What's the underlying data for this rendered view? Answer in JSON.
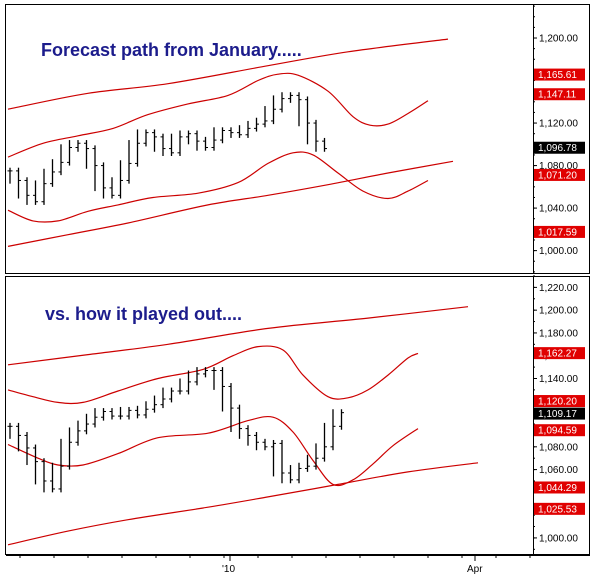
{
  "chart_data": [
    {
      "type": "line",
      "title": "Forecast path from January.....",
      "ylim": [
        978,
        1232
      ],
      "yticks": [
        1000,
        1040,
        1080,
        1120,
        1200
      ],
      "ytick_labels": [
        "1,000.00",
        "1,040.00",
        "1,080.00",
        "1,120.00",
        "1,200.00"
      ],
      "price_tags": [
        {
          "value": 1165.61,
          "label": "1,165.61",
          "color": "#e00000"
        },
        {
          "value": 1147.11,
          "label": "1,147.11",
          "color": "#e00000"
        },
        {
          "value": 1096.78,
          "label": "1,096.78",
          "color": "#000000"
        },
        {
          "value": 1071.2,
          "label": "1,071.20",
          "color": "#e00000"
        },
        {
          "value": 1017.59,
          "label": "1,017.59",
          "color": "#e00000"
        }
      ],
      "series": [
        {
          "color": "#cc0000",
          "points": [
            [
              0,
              1004
            ],
            [
              60,
              1015
            ],
            [
              120,
              1026
            ],
            [
              200,
              1043
            ],
            [
              260,
              1052
            ],
            [
              320,
              1062
            ],
            [
              380,
              1073
            ],
            [
              445,
              1084
            ]
          ]
        },
        {
          "color": "#cc0000",
          "points": [
            [
              0,
              1133
            ],
            [
              80,
              1148
            ],
            [
              160,
              1157
            ],
            [
              260,
              1174
            ],
            [
              340,
              1187
            ],
            [
              440,
              1199
            ]
          ]
        },
        {
          "color": "#cc0000",
          "points": [
            [
              0,
              1088
            ],
            [
              35,
              1101
            ],
            [
              70,
              1108
            ],
            [
              105,
              1115
            ],
            [
              140,
              1128
            ],
            [
              180,
              1138
            ],
            [
              220,
              1146
            ],
            [
              250,
              1160
            ],
            [
              270,
              1166
            ],
            [
              290,
              1165
            ],
            [
              320,
              1150
            ],
            [
              345,
              1126
            ],
            [
              362,
              1118
            ],
            [
              380,
              1119
            ],
            [
              400,
              1129
            ],
            [
              420,
              1141
            ]
          ]
        },
        {
          "color": "#cc0000",
          "points": [
            [
              0,
              1038
            ],
            [
              25,
              1028
            ],
            [
              50,
              1028
            ],
            [
              80,
              1037
            ],
            [
              110,
              1043
            ],
            [
              145,
              1050
            ],
            [
              190,
              1054
            ],
            [
              230,
              1064
            ],
            [
              260,
              1082
            ],
            [
              285,
              1092
            ],
            [
              305,
              1090
            ],
            [
              330,
              1073
            ],
            [
              355,
              1056
            ],
            [
              380,
              1049
            ],
            [
              400,
              1056
            ],
            [
              420,
              1066
            ]
          ]
        }
      ],
      "ohlc_path": [
        1075,
        1066,
        1052,
        1046,
        1063,
        1074,
        1083,
        1097,
        1101,
        1096,
        1080,
        1059,
        1052,
        1066,
        1082,
        1101,
        1111,
        1107,
        1096,
        1092,
        1107,
        1110,
        1103,
        1097,
        1104,
        1113,
        1111,
        1109,
        1115,
        1119,
        1122,
        1133,
        1143,
        1146,
        1142,
        1120,
        1103,
        1096
      ]
    },
    {
      "type": "line",
      "title": "vs. how it played out....",
      "ylim": [
        985,
        1230
      ],
      "yticks": [
        1000,
        1060,
        1080,
        1140,
        1160,
        1180,
        1200,
        1220
      ],
      "ytick_labels": [
        "1,000.00",
        "1,060.00",
        "1,080.00",
        "1,140.00",
        "1,160.00",
        "1,180.00",
        "1,200.00",
        "1,220.00"
      ],
      "xticks": [
        {
          "x": 230,
          "label": "'10"
        },
        {
          "x": 475,
          "label": "Apr"
        }
      ],
      "price_tags": [
        {
          "value": 1162.27,
          "label": "1,162.27",
          "color": "#e00000"
        },
        {
          "value": 1120.2,
          "label": "1,120.20",
          "color": "#e00000"
        },
        {
          "value": 1109.17,
          "label": "1,109.17",
          "color": "#000000"
        },
        {
          "value": 1094.59,
          "label": "1,094.59",
          "color": "#e00000"
        },
        {
          "value": 1044.29,
          "label": "1,044.29",
          "color": "#e00000"
        },
        {
          "value": 1025.53,
          "label": "1,025.53",
          "color": "#e00000"
        }
      ],
      "series": [
        {
          "color": "#cc0000",
          "points": [
            [
              0,
              994
            ],
            [
              60,
              1006
            ],
            [
              120,
              1016
            ],
            [
              200,
              1027
            ],
            [
              260,
              1036
            ],
            [
              330,
              1047
            ],
            [
              400,
              1058
            ],
            [
              470,
              1066
            ]
          ]
        },
        {
          "color": "#cc0000",
          "points": [
            [
              0,
              1152
            ],
            [
              80,
              1161
            ],
            [
              160,
              1170
            ],
            [
              260,
              1184
            ],
            [
              360,
              1193
            ],
            [
              460,
              1203
            ]
          ]
        },
        {
          "color": "#cc0000",
          "points": [
            [
              0,
              1130
            ],
            [
              25,
              1124
            ],
            [
              50,
              1119
            ],
            [
              75,
              1119
            ],
            [
              110,
              1129
            ],
            [
              150,
              1140
            ],
            [
              195,
              1148
            ],
            [
              225,
              1160
            ],
            [
              250,
              1168
            ],
            [
              275,
              1165
            ],
            [
              295,
              1143
            ],
            [
              320,
              1124
            ],
            [
              340,
              1123
            ],
            [
              360,
              1130
            ],
            [
              380,
              1143
            ],
            [
              400,
              1158
            ],
            [
              410,
              1162
            ]
          ]
        },
        {
          "color": "#cc0000",
          "points": [
            [
              0,
              1082
            ],
            [
              30,
              1070
            ],
            [
              50,
              1064
            ],
            [
              75,
              1064
            ],
            [
              110,
              1074
            ],
            [
              150,
              1088
            ],
            [
              200,
              1092
            ],
            [
              240,
              1103
            ],
            [
              265,
              1106
            ],
            [
              285,
              1093
            ],
            [
              305,
              1068
            ],
            [
              325,
              1047
            ],
            [
              345,
              1051
            ],
            [
              365,
              1065
            ],
            [
              385,
              1081
            ],
            [
              410,
              1096
            ]
          ]
        }
      ],
      "ohlc_path": [
        1098,
        1090,
        1079,
        1067,
        1050,
        1043,
        1063,
        1084,
        1094,
        1100,
        1106,
        1111,
        1107,
        1107,
        1112,
        1108,
        1113,
        1117,
        1122,
        1129,
        1129,
        1137,
        1144,
        1147,
        1147,
        1133,
        1114,
        1096,
        1090,
        1084,
        1080,
        1083,
        1057,
        1051,
        1061,
        1063,
        1070,
        1080,
        1098,
        1110
      ]
    }
  ]
}
